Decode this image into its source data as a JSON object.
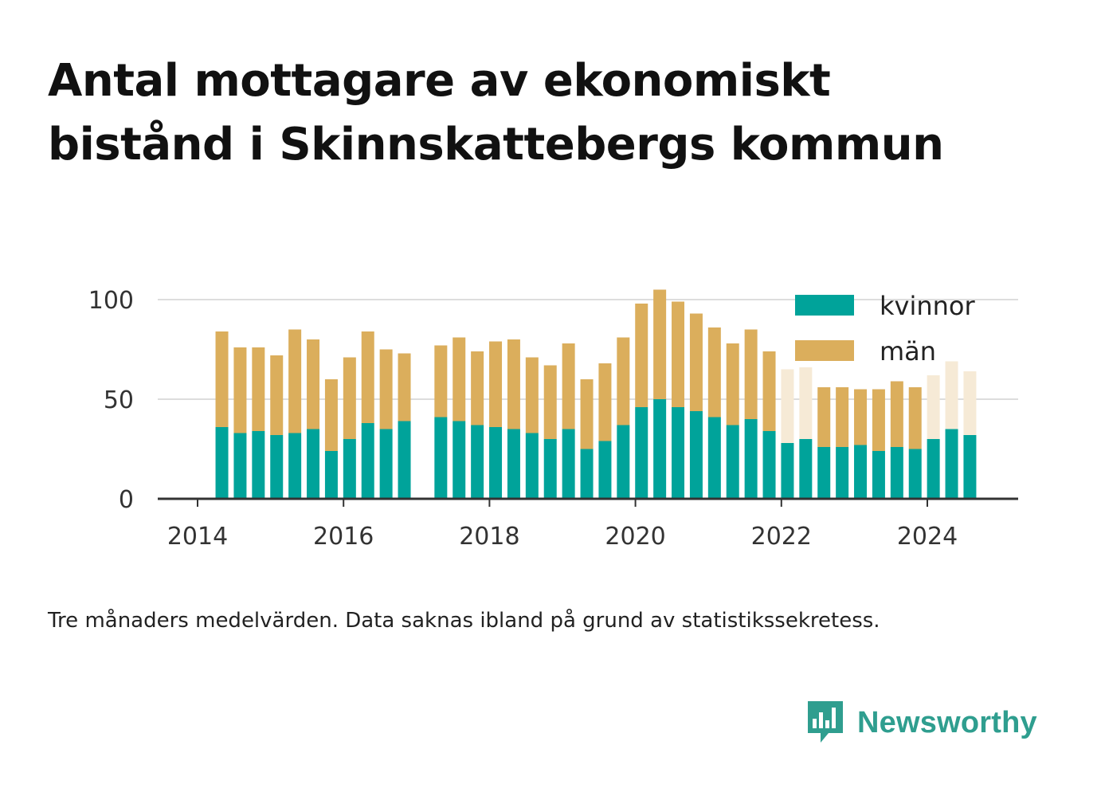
{
  "title_lines": [
    "Antal mottagare av ekonomiskt",
    "bistånd i Skinnskattebergs kommun"
  ],
  "footnote": "Tre månaders medelvärden. Data saknas ibland på grund av statistikssekretess.",
  "brand": "Newsworthy",
  "colors": {
    "kvinnor": "#00a39a",
    "man": "#dbae5c",
    "man_faint": "#f6ead6",
    "axis": "#333333",
    "grid": "#dddddd"
  },
  "chart_data": {
    "type": "bar",
    "stacked": true,
    "ylim": [
      0,
      100
    ],
    "yticks": [
      0,
      50,
      100
    ],
    "xticks": [
      "2014",
      "2016",
      "2018",
      "2020",
      "2022",
      "2024"
    ],
    "legend": [
      "kvinnor",
      "män"
    ],
    "legend_position": "top-right",
    "grid": true,
    "series": [
      {
        "name": "kvinnor",
        "values": [
          36,
          33,
          34,
          32,
          33,
          35,
          24,
          30,
          38,
          35,
          39,
          null,
          41,
          39,
          37,
          36,
          35,
          33,
          30,
          35,
          25,
          29,
          37,
          46,
          50,
          46,
          44,
          41,
          37,
          40,
          34,
          28,
          30,
          26,
          26,
          27,
          24,
          26,
          25,
          30,
          35,
          32
        ]
      },
      {
        "name": "män",
        "values": [
          48,
          43,
          42,
          40,
          52,
          45,
          36,
          41,
          46,
          40,
          34,
          null,
          36,
          42,
          37,
          43,
          45,
          38,
          37,
          43,
          35,
          39,
          44,
          52,
          55,
          53,
          49,
          45,
          41,
          45,
          40,
          null,
          null,
          30,
          30,
          28,
          31,
          33,
          31,
          null,
          null,
          null
        ]
      },
      {
        "name": "män (skattat)",
        "values": [
          null,
          null,
          null,
          null,
          null,
          null,
          null,
          null,
          null,
          null,
          null,
          null,
          null,
          null,
          null,
          null,
          null,
          null,
          null,
          null,
          null,
          null,
          null,
          null,
          null,
          null,
          null,
          null,
          null,
          null,
          null,
          37,
          36,
          null,
          null,
          null,
          null,
          null,
          null,
          32,
          34,
          32
        ]
      }
    ],
    "x": [
      "2014-05",
      "2014-08",
      "2014-11",
      "2015-02",
      "2015-05",
      "2015-08",
      "2015-11",
      "2016-02",
      "2016-05",
      "2016-08",
      "2016-11",
      "2017-02",
      "2017-05",
      "2017-08",
      "2017-11",
      "2018-02",
      "2018-05",
      "2018-08",
      "2018-11",
      "2019-02",
      "2019-05",
      "2019-08",
      "2019-11",
      "2020-02",
      "2020-05",
      "2020-08",
      "2020-11",
      "2021-02",
      "2021-05",
      "2021-08",
      "2021-11",
      "2022-02",
      "2022-05",
      "2022-08",
      "2022-11",
      "2023-02",
      "2023-05",
      "2023-08",
      "2023-11",
      "2024-02",
      "2024-05",
      "2024-08"
    ]
  }
}
